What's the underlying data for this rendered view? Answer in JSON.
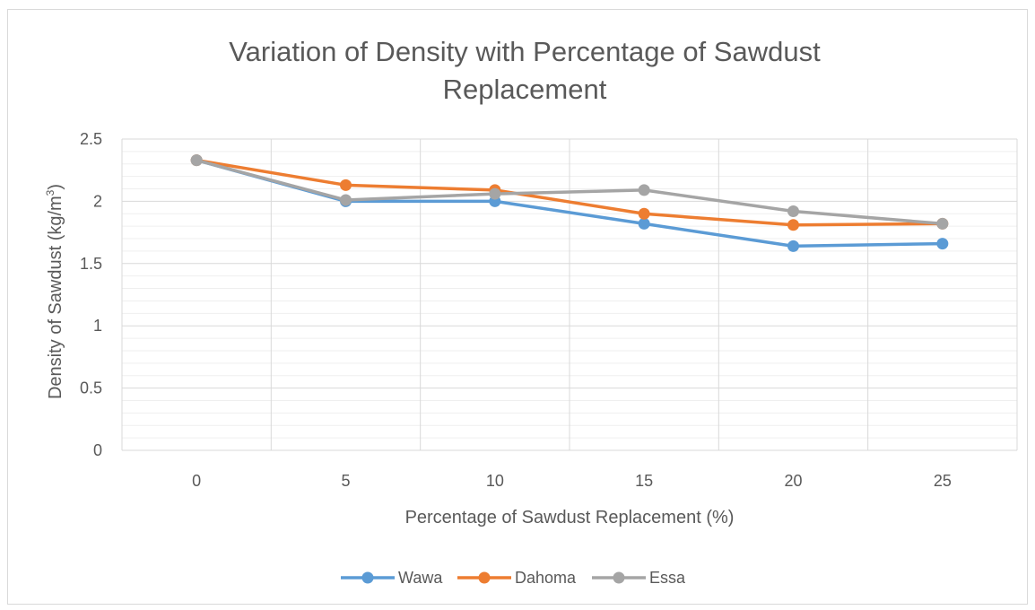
{
  "chart_data": {
    "type": "line",
    "title_line1": "Variation of Density with Percentage of Sawdust",
    "title_line2": "Replacement",
    "xlabel": "Percentage of Sawdust Replacement (%)",
    "ylabel": "Density of Sawdust (kg/m",
    "ylabel_sup": "3",
    "ylabel_end": ")",
    "x": [
      0,
      5,
      10,
      15,
      20,
      25
    ],
    "x_tick_labels": [
      "0",
      "5",
      "10",
      "15",
      "20",
      "25"
    ],
    "y_ticks": [
      0,
      0.5,
      1,
      1.5,
      2,
      2.5
    ],
    "y_tick_labels": [
      "0",
      "0.5",
      "1",
      "1.5",
      "2",
      "2.5"
    ],
    "ylim": [
      0,
      2.5
    ],
    "grid": true,
    "legend_position": "bottom",
    "series": [
      {
        "name": "Wawa",
        "color": "#5b9bd5",
        "values": [
          2.33,
          2.0,
          2.0,
          1.82,
          1.64,
          1.66
        ]
      },
      {
        "name": "Dahoma",
        "color": "#ed7d31",
        "values": [
          2.33,
          2.13,
          2.09,
          1.9,
          1.81,
          1.82
        ]
      },
      {
        "name": "Essa",
        "color": "#a5a5a5",
        "values": [
          2.33,
          2.01,
          2.06,
          2.09,
          1.92,
          1.82
        ]
      }
    ]
  }
}
